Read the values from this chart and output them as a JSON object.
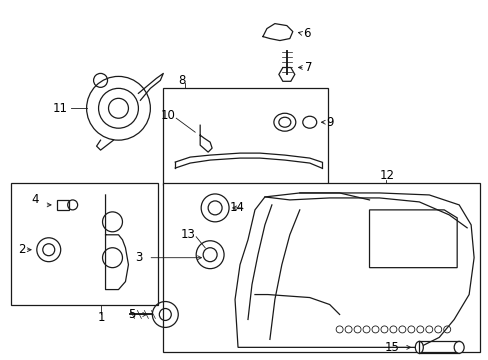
{
  "background_color": "#ffffff",
  "fig_width": 4.89,
  "fig_height": 3.6,
  "dpi": 100,
  "line_color": "#1a1a1a",
  "text_color": "#000000",
  "label_fontsize": 8.5
}
